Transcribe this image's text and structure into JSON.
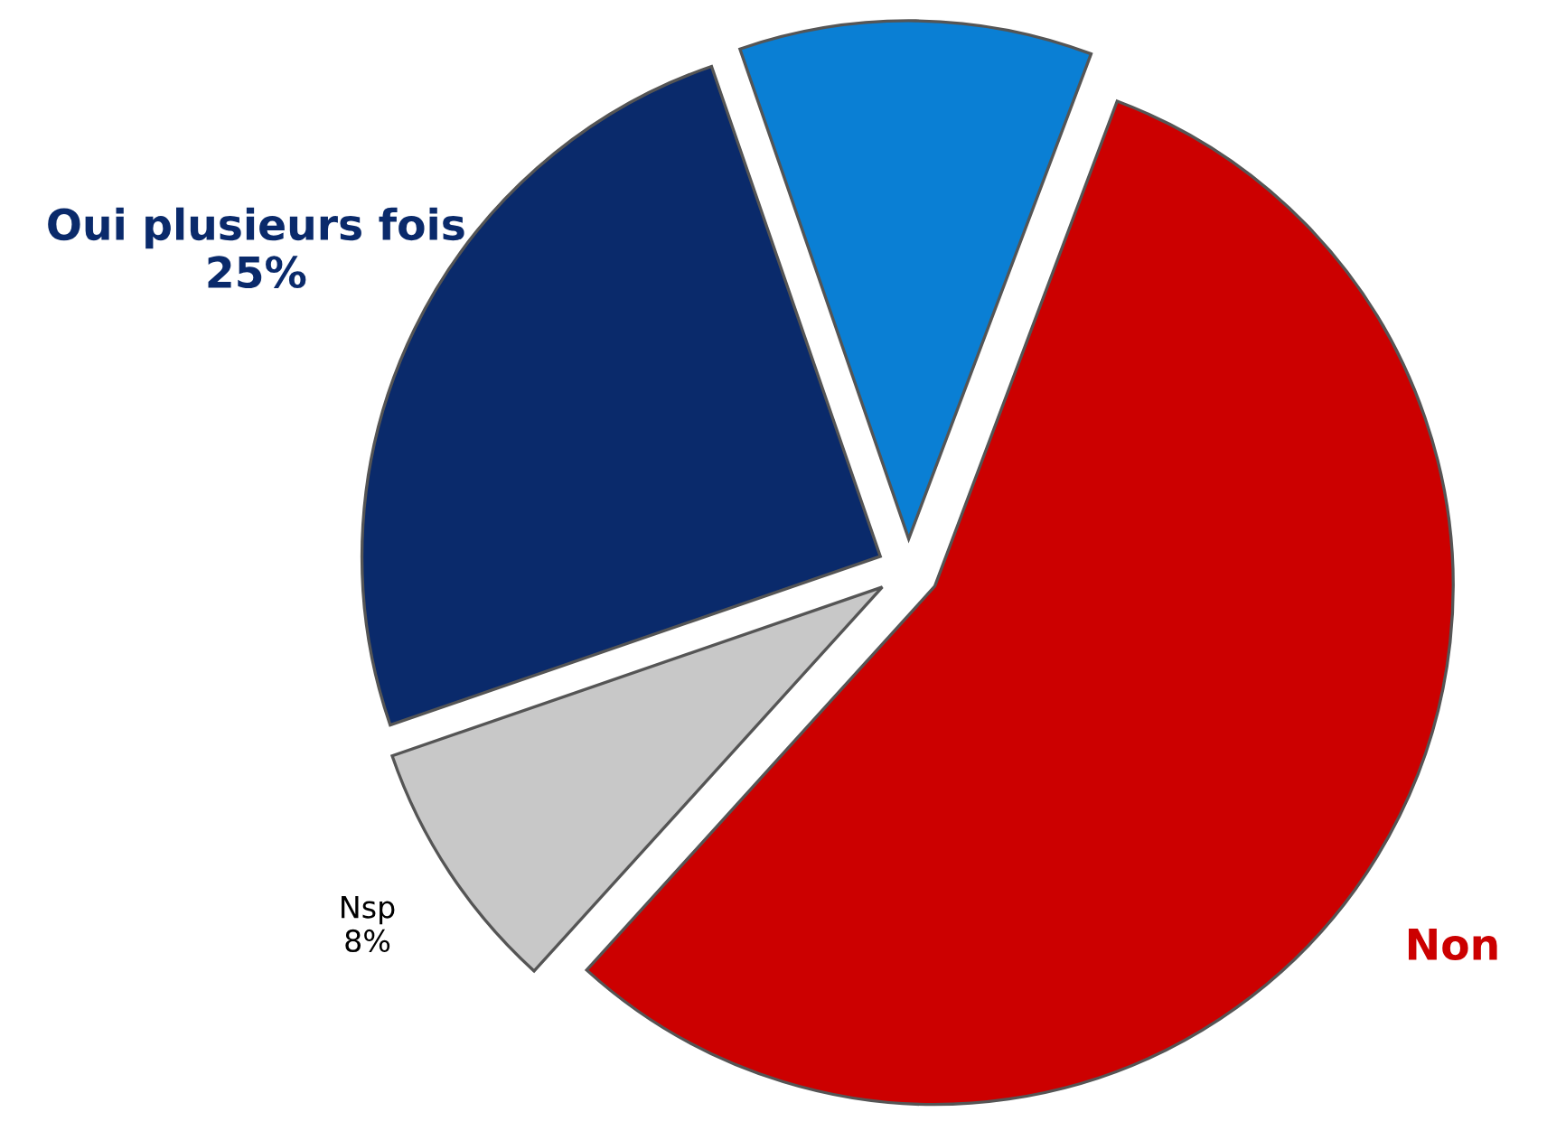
{
  "chart_data": {
    "type": "pie",
    "categories": [
      null,
      "Non",
      "Nsp",
      "Oui plusieurs fois"
    ],
    "values": [
      11,
      56,
      8,
      25
    ],
    "colors": [
      "#0a7fd4",
      "#cc0000",
      "#c8c8c8",
      "#0a2a6b"
    ],
    "value_labels": [
      null,
      null,
      "8%",
      "25%"
    ]
  }
}
